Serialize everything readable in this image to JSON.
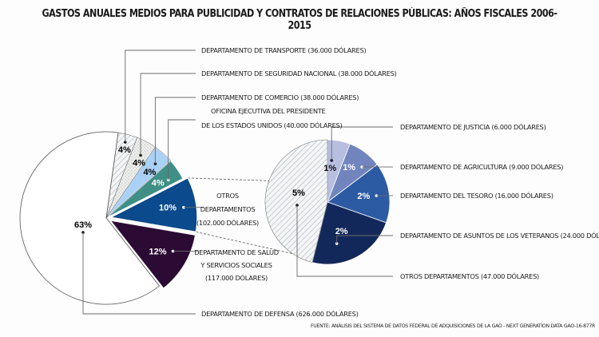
{
  "chart_data": [
    {
      "type": "pie",
      "title": "GASTOS ANUALES MEDIOS PARA PUBLICIDAD Y CONTRATOS DE RELACIONES PÚBLICAS: AÑOS FISCALES 2006-2015",
      "name": "main",
      "slices": [
        {
          "id": "transporte",
          "pct_label": "4%",
          "value": 36000,
          "label": "DEPARTAMENTO DE TRANSPORTE (36.000 DÓLARES)",
          "color": "#e8ecef",
          "pattern": "hatch",
          "pct_color": "#111111"
        },
        {
          "id": "seguridad",
          "pct_label": "4%",
          "value": 38000,
          "label": "DEPARTAMENTO DE SEGURIDAD NACIONAL (38.000 DÓLARES)",
          "color": "#eef0ee",
          "pattern": "dots",
          "pct_color": "#111111"
        },
        {
          "id": "comercio",
          "pct_label": "4%",
          "value": 38000,
          "label": "DEPARTAMENTO DE COMERCIO (38.000 DÓLARES)",
          "color": "#a9d1f5",
          "pattern": "none",
          "pct_color": "#111111"
        },
        {
          "id": "oficina",
          "pct_label": "4%",
          "value": 40000,
          "label_lines": [
            "OFICINA EJECUTIVA DEL PRESIDENTE",
            "DE LOS ESTADOS UNIDOS (40.000 DÓLARES)"
          ],
          "color": "#3f8f86",
          "pattern": "none",
          "pct_color": "#ffffff"
        },
        {
          "id": "otros",
          "pct_label": "10%",
          "value": 102000,
          "label_lines": [
            "OTROS",
            "DEPARTAMENTOS",
            "(102.000 DÓLARES)"
          ],
          "color": "#0b4a8c",
          "pattern": "none",
          "pct_color": "#ffffff",
          "exploded": true
        },
        {
          "id": "salud",
          "pct_label": "12%",
          "value": 117000,
          "label_lines": [
            "DEPARTAMENTO DE SALUD",
            "Y SERVICIOS SOCIALES",
            "(117.000 DÓLARES)"
          ],
          "color": "#2b0a33",
          "pattern": "none",
          "pct_color": "#ffffff",
          "exploded": true
        },
        {
          "id": "defensa",
          "pct_label": "63%",
          "value": 626000,
          "label": "DEPARTAMENTO DE DEFENSA (626.000 DÓLARES)",
          "color": "#ffffff",
          "pattern": "none",
          "pct_color": "#111111"
        }
      ]
    },
    {
      "type": "pie",
      "name": "breakdown-of-otros-departamentos",
      "slices": [
        {
          "id": "justicia",
          "pct_label": "1%",
          "value": 6000,
          "label": "DEPARTAMENTO DE JUSTICIA (6.000 DÓLARES)",
          "color": "#b7bedf",
          "pct_color": "#111111"
        },
        {
          "id": "agricultura",
          "pct_label": "1%",
          "value": 9000,
          "label": "DEPARTAMENTO DE AGRICULTURA (9.000 DÓLARES)",
          "color": "#7184bd",
          "pct_color": "#ffffff"
        },
        {
          "id": "tesoro",
          "pct_label": "2%",
          "value": 16000,
          "label": "DEPARTAMENTO DEL TESORO (16.000 DÓLARES)",
          "color": "#2d5ba3",
          "pct_color": "#ffffff"
        },
        {
          "id": "veteranos",
          "pct_label": "2%",
          "value": 24000,
          "label": "DEPARTAMENTO DE ASUNTOS DE LOS VETERANOS (24.000 DÓLARES)",
          "color": "#13285a",
          "pct_color": "#ffffff"
        },
        {
          "id": "otros2",
          "pct_label": "5%",
          "value": 47000,
          "label": "OTROS DEPARTAMENTOS (47.000 DÓLARES)",
          "color": "#f2f4f6",
          "pattern": "hatch",
          "pct_color": "#111111"
        }
      ]
    }
  ],
  "source": "FUENTE: ANÁLISIS DEL SISTEMA DE DATOS FEDERAL DE ADQUISICIONES DE LA GAO - NEXT GENERATION DATA GAO-16-877R"
}
